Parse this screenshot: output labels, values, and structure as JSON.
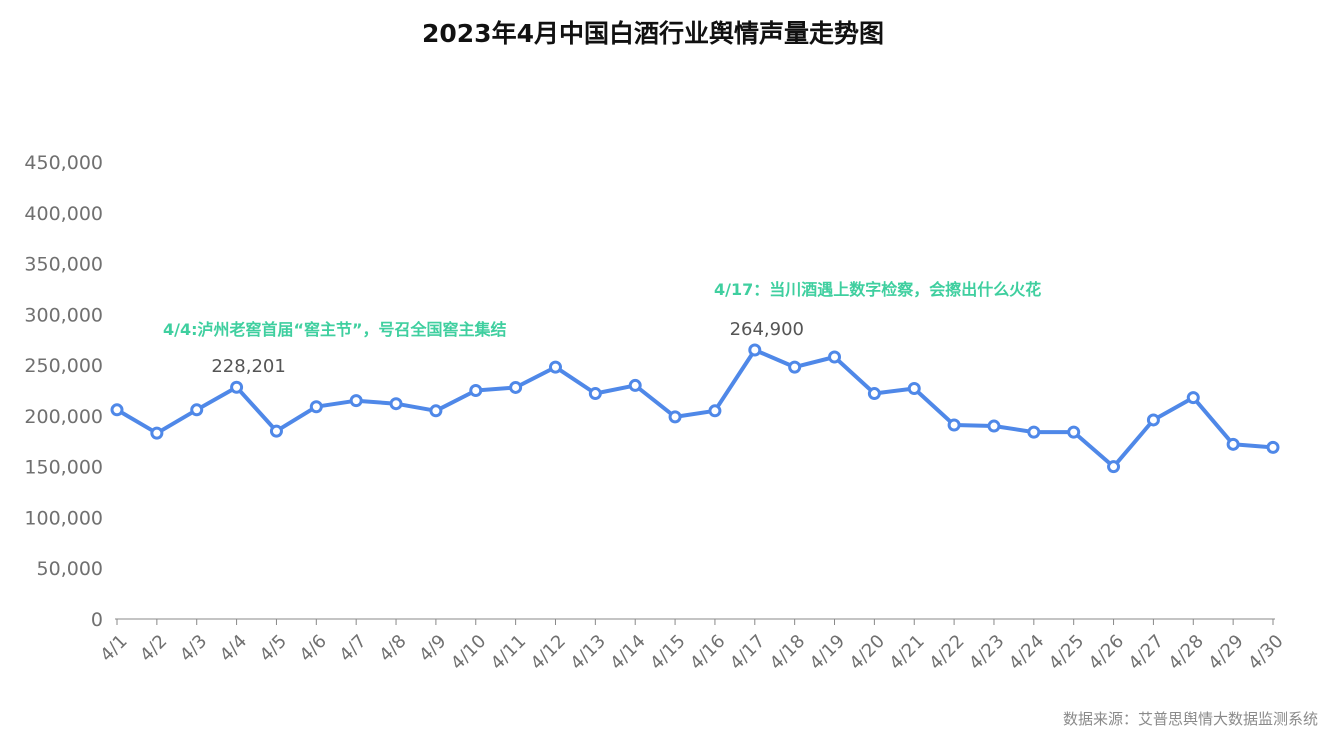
{
  "colors": {
    "line": "#4f88e8",
    "annotation": "#3fcf9f",
    "axis_text": "#707070",
    "axis_line": "#888888"
  },
  "chart_data": {
    "type": "line",
    "title": "2023年4月中国白酒行业舆情声量走势图",
    "xlabel": "",
    "ylabel": "",
    "categories": [
      "4/1",
      "4/2",
      "4/3",
      "4/4",
      "4/5",
      "4/6",
      "4/7",
      "4/8",
      "4/9",
      "4/10",
      "4/11",
      "4/12",
      "4/13",
      "4/14",
      "4/15",
      "4/16",
      "4/17",
      "4/18",
      "4/19",
      "4/20",
      "4/21",
      "4/22",
      "4/23",
      "4/24",
      "4/25",
      "4/26",
      "4/27",
      "4/28",
      "4/29",
      "4/30"
    ],
    "values": [
      206000,
      183000,
      206000,
      228201,
      185000,
      209000,
      215000,
      212000,
      205000,
      225000,
      228000,
      248000,
      222000,
      230000,
      199000,
      205000,
      264900,
      248000,
      258000,
      222000,
      227000,
      191000,
      190000,
      184000,
      184000,
      150000,
      196000,
      218000,
      172000,
      169000
    ],
    "ylim": [
      0,
      450000
    ],
    "yticks": [
      "0",
      "50,000",
      "100,000",
      "150,000",
      "200,000",
      "250,000",
      "300,000",
      "350,000",
      "400,000",
      "450,000"
    ],
    "data_labels": [
      {
        "index": 3,
        "text": "228,201"
      },
      {
        "index": 16,
        "text": "264,900"
      }
    ],
    "annotations": [
      {
        "index": 3,
        "text": "4/4:泸州老窖首届“窖主节”，号召全国窖主集结"
      },
      {
        "index": 16,
        "text": "4/17：当川酒遇上数字检察，会擦出什么火花"
      }
    ],
    "grid": false,
    "legend": "none"
  },
  "source": "数据来源：艾普思舆情大数据监测系统"
}
